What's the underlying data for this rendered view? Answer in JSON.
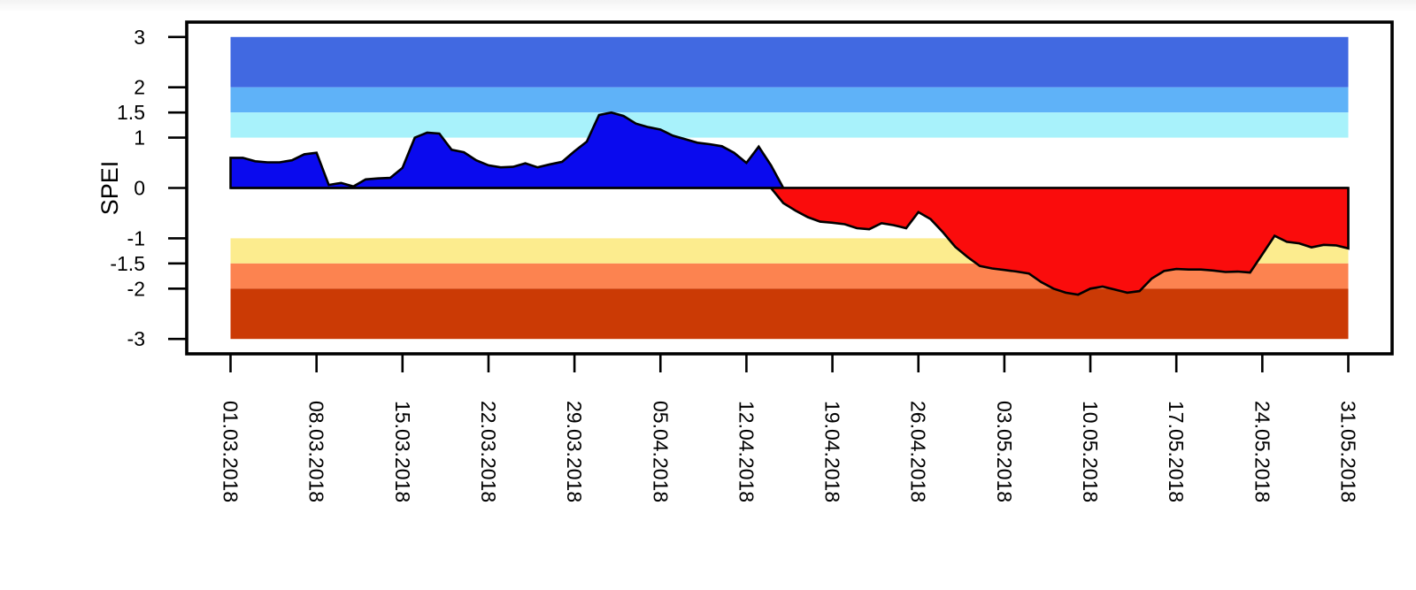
{
  "chart_data": {
    "type": "area",
    "title": "",
    "xlabel": "",
    "ylabel": "SPEI",
    "ylim": [
      -3.3,
      3.3
    ],
    "y_ticks": [
      3,
      2,
      1.5,
      1,
      0,
      -1,
      -1.5,
      -2,
      -3
    ],
    "x_tick_labels": [
      "01.03.2018",
      "08.03.2018",
      "15.03.2018",
      "22.03.2018",
      "29.03.2018",
      "05.04.2018",
      "12.04.2018",
      "19.04.2018",
      "26.04.2018",
      "03.05.2018",
      "10.05.2018",
      "17.05.2018",
      "24.05.2018",
      "31.05.2018"
    ],
    "x_tick_interval_days": 7,
    "series_start_date": "01.03.2018",
    "series_end_date": "31.05.2018",
    "sampling": "daily",
    "grid": "off",
    "legend": "none",
    "line_color": "#000000",
    "positive_fill": "#0A0AEE",
    "negative_fill": "#FA0C0C",
    "bands": [
      {
        "from": 2,
        "to": 3,
        "color": "#4169E1"
      },
      {
        "from": 1.5,
        "to": 2,
        "color": "#5FB2F8"
      },
      {
        "from": 1,
        "to": 1.5,
        "color": "#A8F2FB"
      },
      {
        "from": -1.5,
        "to": -1,
        "color": "#FCEC8E"
      },
      {
        "from": -2,
        "to": -1.5,
        "color": "#FC8350"
      },
      {
        "from": -3,
        "to": -2,
        "color": "#CB3A05"
      }
    ],
    "values": [
      0.6,
      0.6,
      0.53,
      0.51,
      0.51,
      0.55,
      0.67,
      0.7,
      0.06,
      0.1,
      0.03,
      0.17,
      0.19,
      0.2,
      0.4,
      1.0,
      1.1,
      1.08,
      0.76,
      0.71,
      0.55,
      0.45,
      0.41,
      0.42,
      0.49,
      0.41,
      0.47,
      0.52,
      0.73,
      0.92,
      1.45,
      1.5,
      1.43,
      1.28,
      1.21,
      1.16,
      1.04,
      0.97,
      0.9,
      0.87,
      0.83,
      0.7,
      0.5,
      0.82,
      0.45,
      -0.3,
      -0.45,
      -0.58,
      -0.67,
      -0.69,
      -0.72,
      -0.8,
      -0.82,
      -0.7,
      -0.74,
      -0.8,
      -0.48,
      -0.62,
      -0.88,
      -1.17,
      -1.37,
      -1.55,
      -1.6,
      -1.63,
      -1.66,
      -1.7,
      -1.87,
      -2.0,
      -2.08,
      -2.12,
      -2.0,
      -1.96,
      -2.02,
      -2.08,
      -2.05,
      -1.8,
      -1.65,
      -1.61,
      -1.62,
      -1.62,
      -1.64,
      -1.67,
      -1.66,
      -1.68,
      -1.32,
      -0.95,
      -1.07,
      -1.1,
      -1.18,
      -1.13,
      -1.14,
      -1.2
    ]
  }
}
